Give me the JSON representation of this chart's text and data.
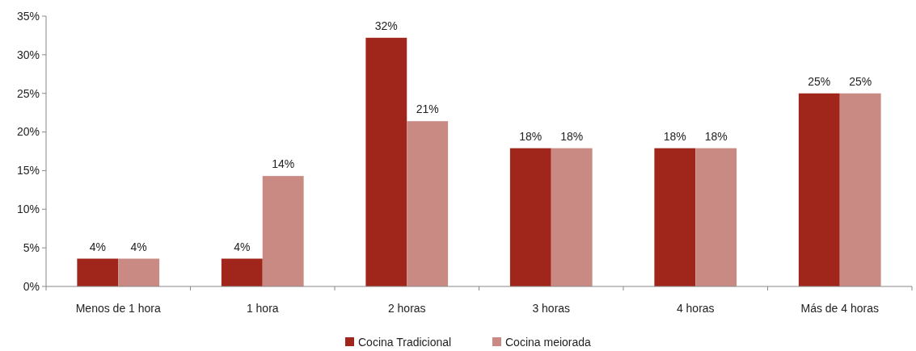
{
  "chart_data": {
    "type": "bar",
    "categories": [
      "Menos de 1 hora",
      "1 hora",
      "2 horas",
      "3 horas",
      "4 horas",
      "Más de 4 horas"
    ],
    "series": [
      {
        "name": "Cocina Tradicional",
        "color": "#a0251a",
        "values": [
          3.6,
          3.6,
          32.2,
          17.9,
          17.9,
          25.0
        ],
        "value_labels": [
          "4%",
          "4%",
          "32%",
          "18%",
          "18%",
          "25%"
        ]
      },
      {
        "name": "Cocina meiorada",
        "color": "#c98a84",
        "values": [
          3.6,
          14.3,
          21.4,
          17.9,
          17.9,
          25.0
        ],
        "value_labels": [
          "4%",
          "14%",
          "21%",
          "18%",
          "18%",
          "25%"
        ]
      }
    ],
    "ylim": [
      0,
      35
    ],
    "yticks": [
      {
        "value": 0,
        "label": "0%"
      },
      {
        "value": 5,
        "label": "5%"
      },
      {
        "value": 10,
        "label": "10%"
      },
      {
        "value": 15,
        "label": "15%"
      },
      {
        "value": 20,
        "label": "20%"
      },
      {
        "value": 25,
        "label": "25%"
      },
      {
        "value": 30,
        "label": "30%"
      },
      {
        "value": 35,
        "label": "35%"
      }
    ],
    "legend": "bottom"
  }
}
